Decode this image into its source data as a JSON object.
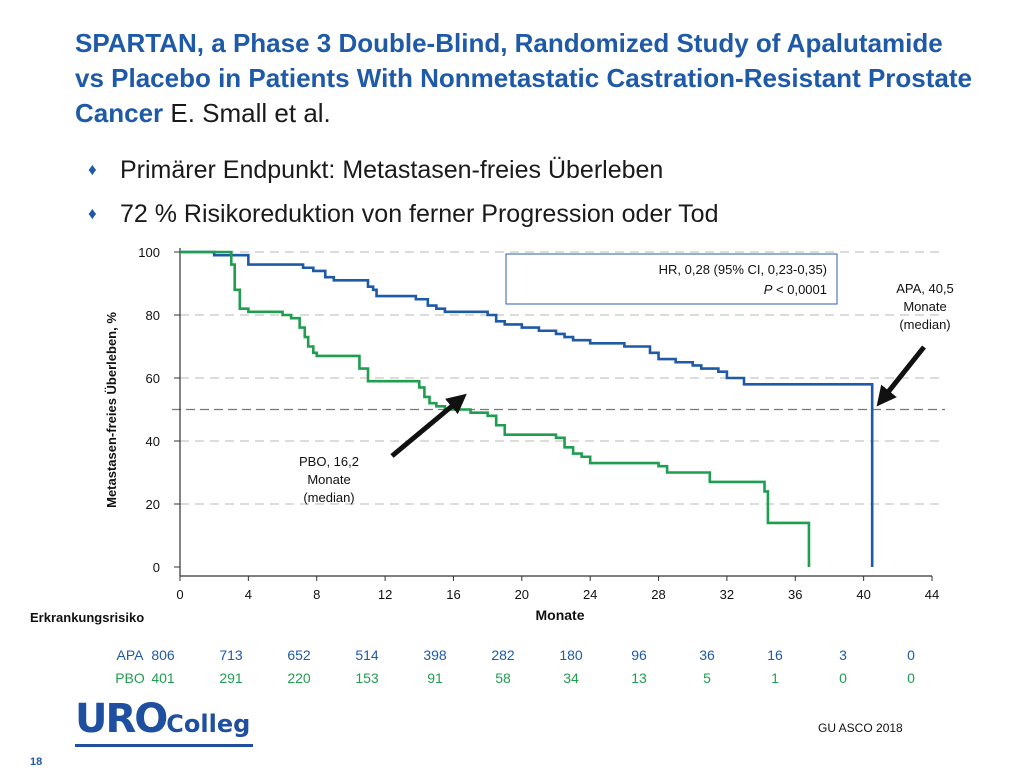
{
  "slide": {
    "title": "SPARTAN, a Phase 3 Double-Blind, Randomized Study of Apalutamide vs Placebo in Patients With Nonmetastatic Castration-Resistant Prostate Cancer",
    "authors": "E. Small et al.",
    "bullets": [
      "Primärer Endpunkt: Metastasen-freies Überleben",
      "72 % Risikoreduktion von ferner Progression oder Tod"
    ],
    "logo": {
      "part1": "URO",
      "part2": "Colleg"
    },
    "source": "GU ASCO 2018",
    "page_number": "18"
  },
  "colors": {
    "apa": "#1e5aa8",
    "pbo": "#1f9e4f",
    "title": "#1e5aa8"
  },
  "chart_data": {
    "type": "line",
    "step": true,
    "xlabel": "Monate",
    "ylabel": "Metastasen-freies Überleben, %",
    "xlim": [
      0,
      44
    ],
    "ylim": [
      0,
      100
    ],
    "x_ticks": [
      0,
      4,
      8,
      12,
      16,
      20,
      24,
      28,
      32,
      36,
      40,
      44
    ],
    "y_ticks": [
      0,
      20,
      40,
      60,
      80,
      100
    ],
    "grid": "horizontal dashed",
    "median_line_y": 50,
    "series": [
      {
        "name": "APA",
        "points": [
          [
            0,
            100
          ],
          [
            1.8,
            100
          ],
          [
            2,
            99
          ],
          [
            3.5,
            99
          ],
          [
            4,
            96
          ],
          [
            7,
            96
          ],
          [
            7.2,
            95
          ],
          [
            7.8,
            94
          ],
          [
            8.5,
            92
          ],
          [
            9,
            91
          ],
          [
            10.8,
            91
          ],
          [
            11,
            89
          ],
          [
            11.3,
            88
          ],
          [
            11.5,
            86
          ],
          [
            12,
            86
          ],
          [
            13.8,
            85
          ],
          [
            14.5,
            83
          ],
          [
            15,
            82
          ],
          [
            15.5,
            81
          ],
          [
            17.8,
            81
          ],
          [
            18,
            80
          ],
          [
            18.5,
            78
          ],
          [
            19,
            77
          ],
          [
            20,
            76
          ],
          [
            21,
            75
          ],
          [
            22,
            74
          ],
          [
            22.5,
            73
          ],
          [
            23,
            72
          ],
          [
            24,
            71
          ],
          [
            25.5,
            71
          ],
          [
            26,
            70
          ],
          [
            27.5,
            68
          ],
          [
            28,
            66
          ],
          [
            29,
            65
          ],
          [
            30,
            64
          ],
          [
            30.5,
            63
          ],
          [
            31.5,
            62
          ],
          [
            32,
            60
          ],
          [
            33,
            58
          ],
          [
            36,
            58
          ],
          [
            40.5,
            58
          ],
          [
            40.5,
            0
          ]
        ]
      },
      {
        "name": "PBO",
        "points": [
          [
            0,
            100
          ],
          [
            2.8,
            100
          ],
          [
            3,
            96
          ],
          [
            3.2,
            88
          ],
          [
            3.5,
            82
          ],
          [
            4,
            81
          ],
          [
            6,
            80
          ],
          [
            6.5,
            79
          ],
          [
            7,
            76
          ],
          [
            7.3,
            73
          ],
          [
            7.5,
            70
          ],
          [
            7.8,
            68
          ],
          [
            8,
            67
          ],
          [
            10,
            67
          ],
          [
            10.5,
            63
          ],
          [
            11,
            59
          ],
          [
            13,
            59
          ],
          [
            14,
            57
          ],
          [
            14.3,
            54
          ],
          [
            14.6,
            52
          ],
          [
            15,
            51
          ],
          [
            15.5,
            50
          ],
          [
            16.2,
            50
          ],
          [
            17,
            49
          ],
          [
            18,
            48
          ],
          [
            18.5,
            45
          ],
          [
            19,
            42
          ],
          [
            20,
            42
          ],
          [
            22,
            41
          ],
          [
            22.5,
            38
          ],
          [
            23,
            36
          ],
          [
            23.5,
            35
          ],
          [
            24,
            33
          ],
          [
            26,
            33
          ],
          [
            28,
            32
          ],
          [
            28.5,
            30
          ],
          [
            30,
            30
          ],
          [
            31,
            27
          ],
          [
            34,
            27
          ],
          [
            34.2,
            24
          ],
          [
            34.4,
            14
          ],
          [
            34.6,
            14
          ],
          [
            36,
            14
          ],
          [
            36.5,
            14
          ],
          [
            36.8,
            0
          ]
        ]
      }
    ],
    "hr_box": {
      "line1": "HR, 0,28 (95% CI, 0,23-0,35)",
      "p_italic": "P",
      "p_rest": " < 0,0001"
    },
    "annotations": [
      {
        "series": "APA",
        "lines": [
          "APA, 40,5",
          "Monate",
          "(median)"
        ],
        "x": 40.5,
        "y": 50
      },
      {
        "series": "PBO",
        "lines": [
          "PBO, 16,2",
          "Monate",
          "(median)"
        ],
        "x": 16.2,
        "y": 50
      }
    ],
    "risk_table": {
      "title": "Erkrankungsrisiko",
      "times": [
        0,
        4,
        8,
        12,
        16,
        20,
        24,
        28,
        32,
        36,
        40,
        44
      ],
      "rows": [
        {
          "name": "APA",
          "values": [
            806,
            713,
            652,
            514,
            398,
            282,
            180,
            96,
            36,
            16,
            3,
            0
          ]
        },
        {
          "name": "PBO",
          "values": [
            401,
            291,
            220,
            153,
            91,
            58,
            34,
            13,
            5,
            1,
            0,
            0
          ]
        }
      ]
    }
  }
}
